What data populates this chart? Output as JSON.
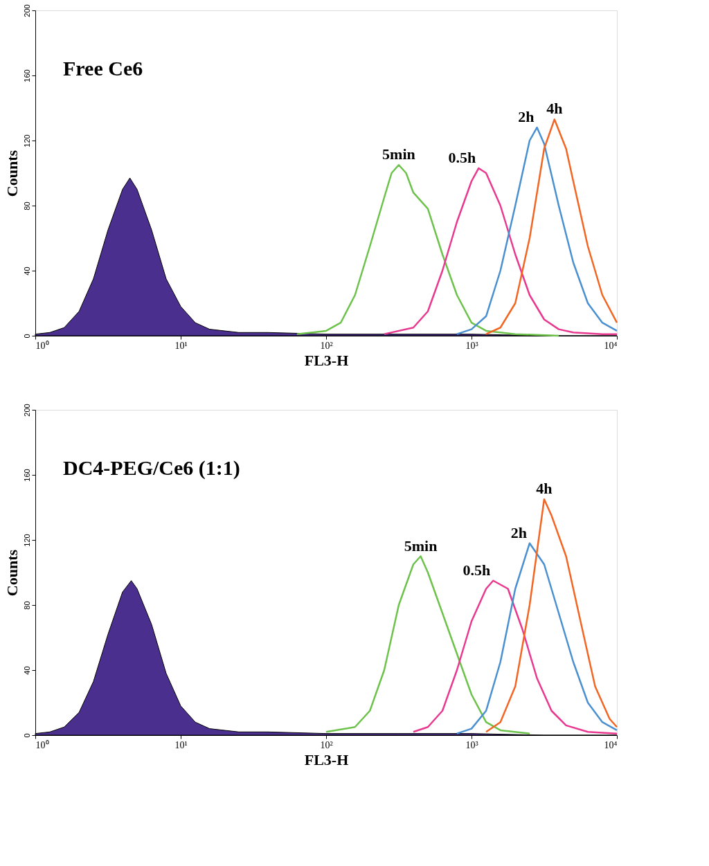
{
  "chart_data": [
    {
      "type": "line",
      "title": "Free Ce6",
      "xlabel": "FL3-H",
      "ylabel": "Counts",
      "log": "x",
      "grid": false,
      "xlim": [
        1,
        10000
      ],
      "ylim": [
        0,
        200
      ],
      "xticks": [
        {
          "value": 1,
          "label": "10⁰"
        },
        {
          "value": 10,
          "label": "10¹"
        },
        {
          "value": 100,
          "label": "10²"
        },
        {
          "value": 1000,
          "label": "10³"
        },
        {
          "value": 10000,
          "label": "10⁴"
        }
      ],
      "yticks": [
        0,
        40,
        80,
        120,
        160,
        200
      ],
      "series": [
        {
          "type": "area",
          "color": "#4b2f8f",
          "x": [
            1,
            1.26,
            1.58,
            2.0,
            2.51,
            3.16,
            3.98,
            4.47,
            5.01,
            6.31,
            7.94,
            10,
            12.6,
            15.8,
            25.1,
            39.8,
            100,
            316,
            1000,
            3160,
            10000
          ],
          "values": [
            1,
            2,
            5,
            15,
            35,
            65,
            90,
            97,
            90,
            65,
            35,
            18,
            8,
            4,
            2,
            2,
            1,
            1,
            1,
            0,
            0
          ]
        },
        {
          "name": "5min",
          "color": "#6cc24a",
          "x": [
            63,
            100,
            126,
            158,
            200,
            251,
            282,
            316,
            355,
            398,
            501,
            631,
            794,
            1000,
            1260,
            2000,
            3980
          ],
          "values": [
            1,
            3,
            8,
            25,
            55,
            85,
            100,
            105,
            100,
            88,
            78,
            50,
            25,
            8,
            3,
            1,
            0
          ]
        },
        {
          "name": "0.5h",
          "color": "#e8388f",
          "x": [
            251,
            398,
            501,
            631,
            794,
            1000,
            1120,
            1260,
            1580,
            2000,
            2510,
            3160,
            3980,
            5010,
            7940,
            10000
          ],
          "values": [
            1,
            5,
            15,
            40,
            70,
            95,
            103,
            100,
            80,
            50,
            25,
            10,
            4,
            2,
            1,
            1
          ]
        },
        {
          "name": "2h",
          "color": "#4a90d0",
          "x": [
            794,
            1000,
            1260,
            1580,
            2000,
            2510,
            2820,
            3160,
            3980,
            5010,
            6310,
            7940,
            10000
          ],
          "values": [
            1,
            4,
            12,
            40,
            80,
            120,
            128,
            118,
            80,
            45,
            20,
            8,
            3
          ]
        },
        {
          "name": "4h",
          "color": "#f26522",
          "x": [
            1260,
            1580,
            2000,
            2510,
            3160,
            3720,
            4470,
            5010,
            6310,
            7940,
            10000
          ],
          "values": [
            1,
            5,
            20,
            60,
            115,
            133,
            115,
            95,
            55,
            25,
            8
          ]
        }
      ],
      "legend": false
    },
    {
      "type": "line",
      "title": "DC4-PEG/Ce6 (1:1)",
      "xlabel": "FL3-H",
      "ylabel": "Counts",
      "log": "x",
      "grid": false,
      "xlim": [
        1,
        10000
      ],
      "ylim": [
        0,
        200
      ],
      "xticks": [
        {
          "value": 1,
          "label": "10⁰"
        },
        {
          "value": 10,
          "label": "10¹"
        },
        {
          "value": 100,
          "label": "10²"
        },
        {
          "value": 1000,
          "label": "10³"
        },
        {
          "value": 10000,
          "label": "10⁴"
        }
      ],
      "yticks": [
        0,
        40,
        80,
        120,
        160,
        200
      ],
      "series": [
        {
          "type": "area",
          "color": "#4b2f8f",
          "x": [
            1,
            1.26,
            1.58,
            2.0,
            2.51,
            3.16,
            3.98,
            4.57,
            5.01,
            6.31,
            7.94,
            10,
            12.6,
            15.8,
            25.1,
            39.8,
            100,
            316,
            1000,
            3160,
            10000
          ],
          "values": [
            1,
            2,
            5,
            14,
            33,
            62,
            88,
            95,
            90,
            68,
            38,
            18,
            8,
            4,
            2,
            2,
            1,
            1,
            1,
            0,
            0
          ]
        },
        {
          "name": "5min",
          "color": "#6cc24a",
          "x": [
            100,
            158,
            200,
            251,
            316,
            398,
            447,
            501,
            631,
            794,
            1000,
            1260,
            1580,
            2510
          ],
          "values": [
            2,
            5,
            15,
            40,
            80,
            105,
            110,
            100,
            75,
            50,
            25,
            8,
            3,
            1
          ]
        },
        {
          "name": "0.5h",
          "color": "#e8388f",
          "x": [
            398,
            501,
            631,
            794,
            1000,
            1260,
            1410,
            1780,
            2240,
            2820,
            3550,
            4470,
            6310,
            10000
          ],
          "values": [
            2,
            5,
            15,
            40,
            70,
            90,
            95,
            90,
            65,
            35,
            15,
            6,
            2,
            1
          ]
        },
        {
          "name": "2h",
          "color": "#4a90d0",
          "x": [
            794,
            1000,
            1260,
            1580,
            2000,
            2510,
            3160,
            3980,
            5010,
            6310,
            7940,
            10000
          ],
          "values": [
            1,
            4,
            15,
            45,
            90,
            118,
            105,
            75,
            45,
            20,
            8,
            3
          ]
        },
        {
          "name": "4h",
          "color": "#f26522",
          "x": [
            1260,
            1580,
            2000,
            2510,
            3160,
            3550,
            4470,
            5620,
            7080,
            8910,
            10000
          ],
          "values": [
            2,
            8,
            30,
            80,
            145,
            135,
            110,
            70,
            30,
            10,
            5
          ]
        }
      ],
      "legend": false
    }
  ]
}
